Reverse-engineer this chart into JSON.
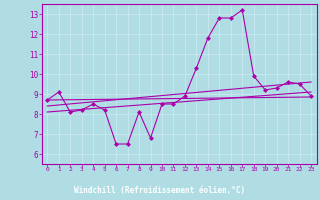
{
  "xlabel": "Windchill (Refroidissement éolien,°C)",
  "xlim": [
    -0.5,
    23.5
  ],
  "ylim": [
    5.5,
    13.5
  ],
  "yticks": [
    6,
    7,
    8,
    9,
    10,
    11,
    12,
    13
  ],
  "xticks": [
    0,
    1,
    2,
    3,
    4,
    5,
    6,
    7,
    8,
    9,
    10,
    11,
    12,
    13,
    14,
    15,
    16,
    17,
    18,
    19,
    20,
    21,
    22,
    23
  ],
  "bg_color": "#b0dde4",
  "grid_color": "#d0eef4",
  "line_color": "#aa00aa",
  "xlabel_bg": "#7b3f9e",
  "line1_x": [
    0,
    1,
    2,
    3,
    4,
    5,
    6,
    7,
    8,
    9,
    10,
    11,
    12,
    13,
    14,
    15,
    16,
    17,
    18,
    19,
    20,
    21,
    22,
    23
  ],
  "line1_y": [
    8.7,
    9.1,
    8.1,
    8.2,
    8.5,
    8.2,
    6.5,
    6.5,
    8.1,
    6.8,
    8.5,
    8.5,
    8.9,
    10.3,
    11.8,
    12.8,
    12.8,
    13.2,
    9.9,
    9.2,
    9.3,
    9.6,
    9.5,
    8.9
  ],
  "line2_x": [
    0,
    23
  ],
  "line2_y": [
    8.7,
    8.85
  ],
  "line3_x": [
    0,
    23
  ],
  "line3_y": [
    8.4,
    9.6
  ],
  "line4_x": [
    0,
    23
  ],
  "line4_y": [
    8.1,
    9.1
  ]
}
